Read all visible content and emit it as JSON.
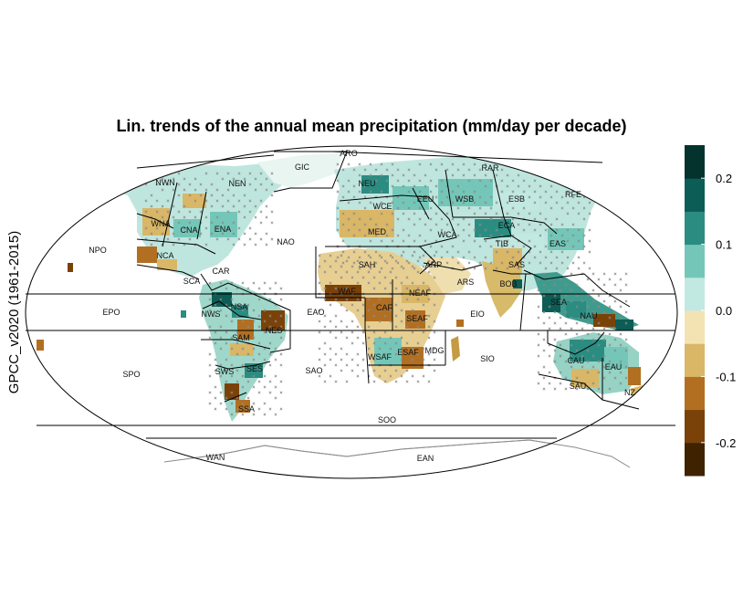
{
  "figure": {
    "title": "Lin. trends of the annual mean precipitation (mm/day per decade)",
    "ylabel": "GPCC_v2020 (1961-2015)"
  },
  "colorbar": {
    "bins": [
      "#3f2300",
      "#7a4209",
      "#b26f22",
      "#d9b767",
      "#f3e3b3",
      "#c2e8e2",
      "#74c7b8",
      "#2b8c81",
      "#0c5d55",
      "#04332d"
    ],
    "ticks": [
      {
        "label": "-0.2",
        "value": -0.2
      },
      {
        "label": "-0.1",
        "value": -0.1
      },
      {
        "label": "0.0",
        "value": 0.0
      },
      {
        "label": "0.1",
        "value": 0.1
      },
      {
        "label": "0.2",
        "value": 0.2
      }
    ],
    "range": [
      -0.25,
      0.25
    ]
  },
  "regions": [
    {
      "name": "ARO",
      "label": "ARO"
    },
    {
      "name": "GIC",
      "label": "GIC"
    },
    {
      "name": "NWN",
      "label": "NWN"
    },
    {
      "name": "NEN",
      "label": "NEN"
    },
    {
      "name": "WNA",
      "label": "WNA"
    },
    {
      "name": "CNA",
      "label": "CNA"
    },
    {
      "name": "ENA",
      "label": "ENA"
    },
    {
      "name": "NCA",
      "label": "NCA"
    },
    {
      "name": "NPO",
      "label": "NPO"
    },
    {
      "name": "NAO",
      "label": "NAO"
    },
    {
      "name": "CAR",
      "label": "CAR"
    },
    {
      "name": "SCA",
      "label": "SCA"
    },
    {
      "name": "EPO",
      "label": "EPO"
    },
    {
      "name": "NWS",
      "label": "NWS"
    },
    {
      "name": "NSA",
      "label": "NSA"
    },
    {
      "name": "NES",
      "label": "NES"
    },
    {
      "name": "SAM",
      "label": "SAM"
    },
    {
      "name": "EAO",
      "label": "EAO"
    },
    {
      "name": "SPO",
      "label": "SPO"
    },
    {
      "name": "SWS",
      "label": "SWS"
    },
    {
      "name": "SES",
      "label": "SES"
    },
    {
      "name": "SSA",
      "label": "SSA"
    },
    {
      "name": "SAO",
      "label": "SAO"
    },
    {
      "name": "NEU",
      "label": "NEU"
    },
    {
      "name": "WCE",
      "label": "WCE"
    },
    {
      "name": "MED",
      "label": "MED"
    },
    {
      "name": "EEU",
      "label": "EEU"
    },
    {
      "name": "WSB",
      "label": "WSB"
    },
    {
      "name": "ESB",
      "label": "ESB"
    },
    {
      "name": "RAR",
      "label": "RAR"
    },
    {
      "name": "RFE",
      "label": "RFE"
    },
    {
      "name": "ECA",
      "label": "ECA"
    },
    {
      "name": "WCA",
      "label": "WCA"
    },
    {
      "name": "TIB",
      "label": "TIB"
    },
    {
      "name": "EAS",
      "label": "EAS"
    },
    {
      "name": "SAS",
      "label": "SAS"
    },
    {
      "name": "SAH",
      "label": "SAH"
    },
    {
      "name": "ARP",
      "label": "ARP"
    },
    {
      "name": "ARS",
      "label": "ARS"
    },
    {
      "name": "BOB",
      "label": "BOB"
    },
    {
      "name": "WAF",
      "label": "WAF"
    },
    {
      "name": "NEAF",
      "label": "NEAF"
    },
    {
      "name": "CAF",
      "label": "CAF"
    },
    {
      "name": "SEAF",
      "label": "SEAF"
    },
    {
      "name": "EIO",
      "label": "EIO"
    },
    {
      "name": "SEA",
      "label": "SEA"
    },
    {
      "name": "WSAF",
      "label": "WSAF"
    },
    {
      "name": "ESAF",
      "label": "ESAF"
    },
    {
      "name": "MDG",
      "label": "MDG"
    },
    {
      "name": "SIO",
      "label": "SIO"
    },
    {
      "name": "NAU",
      "label": "NAU"
    },
    {
      "name": "CAU",
      "label": "CAU"
    },
    {
      "name": "EAU",
      "label": "EAU"
    },
    {
      "name": "SAU",
      "label": "SAU"
    },
    {
      "name": "NZ",
      "label": "NZ"
    },
    {
      "name": "SOO",
      "label": "SOO"
    },
    {
      "name": "WAN",
      "label": "WAN"
    },
    {
      "name": "EAN",
      "label": "EAN"
    }
  ]
}
